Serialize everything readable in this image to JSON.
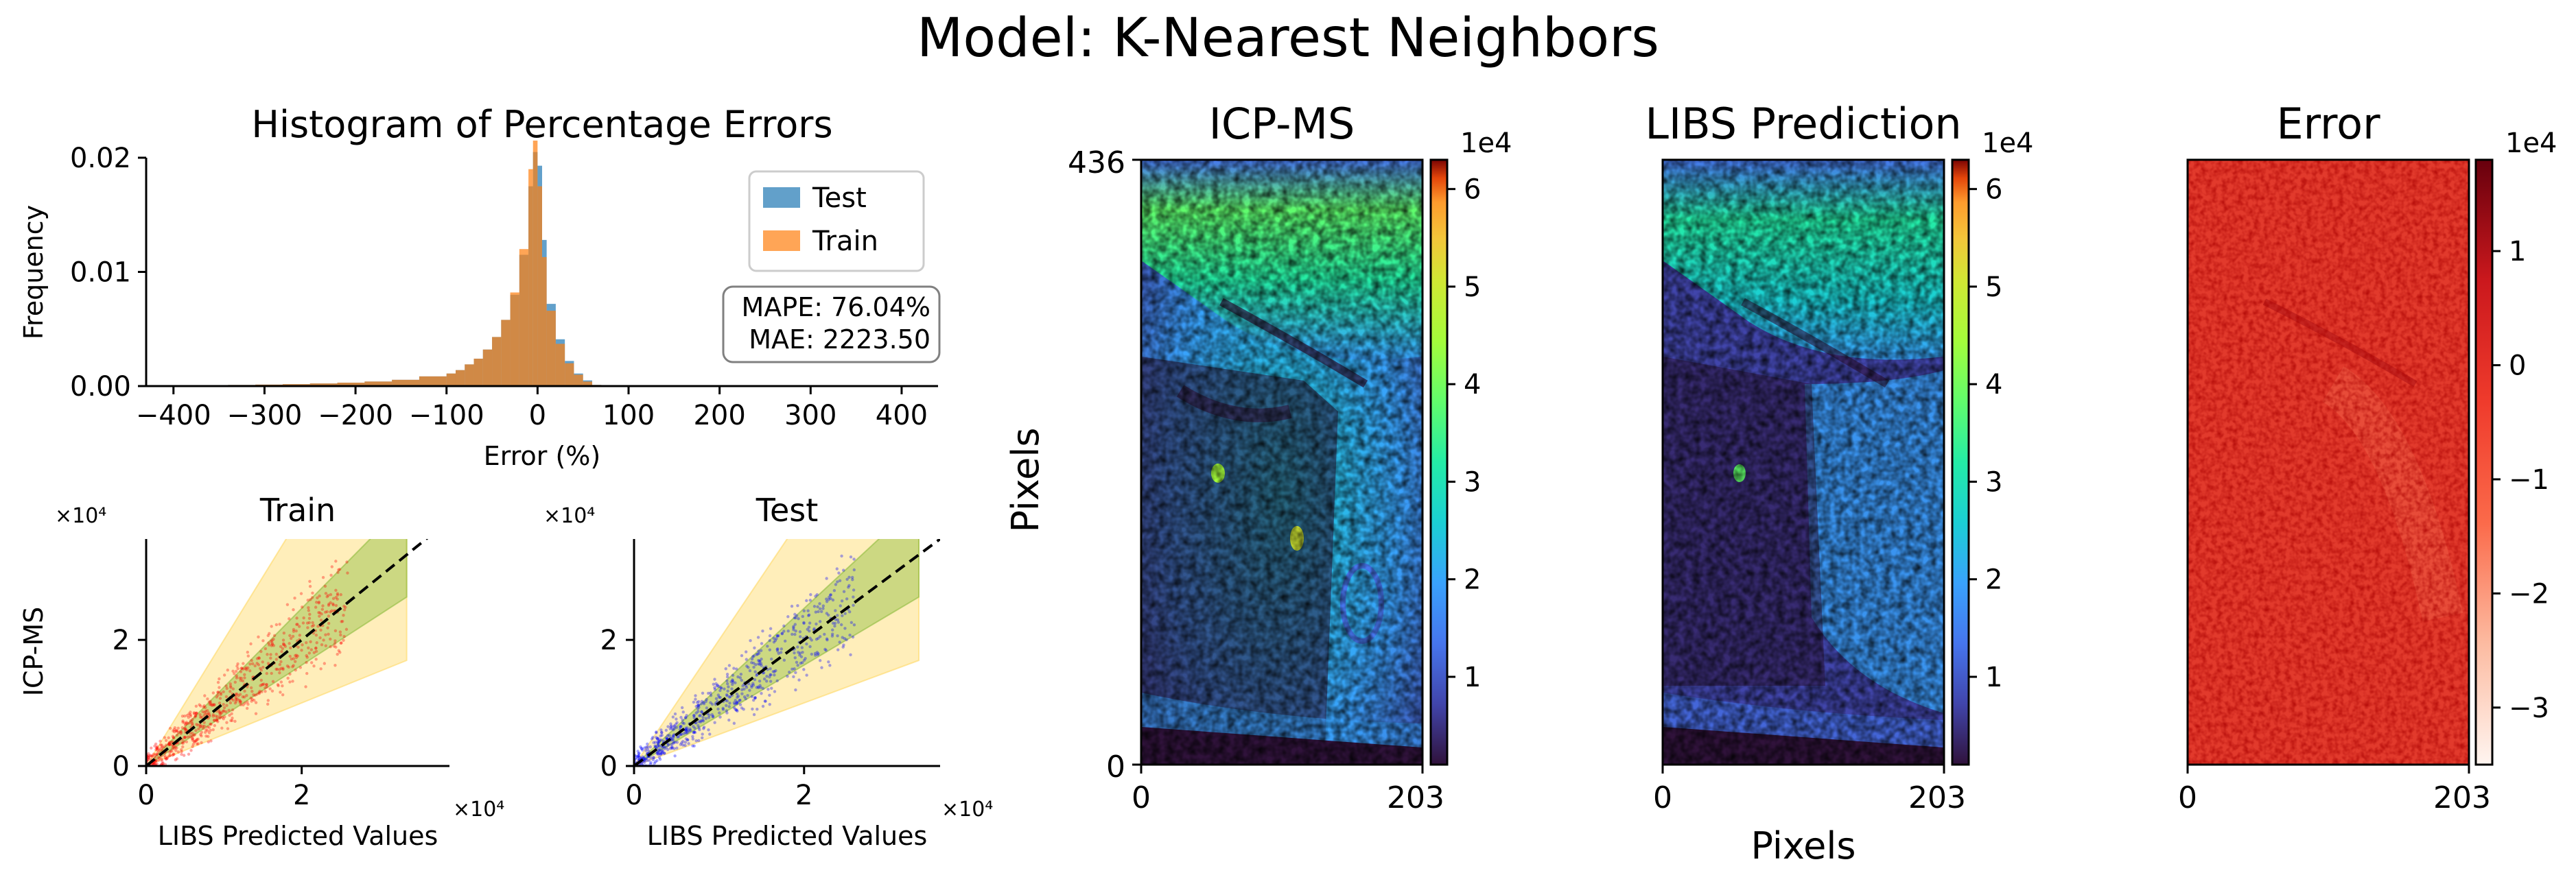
{
  "suptitle": "Model: K-Nearest Neighbors",
  "chart_data": [
    {
      "type": "histogram",
      "title": "Histogram of Percentage Errors",
      "xlabel": "Error (%)",
      "ylabel": "Frequency",
      "xlim": [
        -430,
        440
      ],
      "ylim": [
        0,
        0.02
      ],
      "xticks": [
        "−400",
        "−300",
        "−200",
        "−100",
        "0",
        "100",
        "200",
        "300",
        "400"
      ],
      "yticks": [
        "0.00",
        "0.01",
        "0.02"
      ],
      "legend_position": "upper right",
      "series": [
        {
          "name": "Test",
          "color": "#1f77b4",
          "bins": [
            -430,
            -400,
            -370,
            -340,
            -310,
            -280,
            -250,
            -220,
            -190,
            -160,
            -130,
            -100,
            -90,
            -80,
            -70,
            -60,
            -50,
            -40,
            -30,
            -20,
            -10,
            -5,
            0,
            5,
            10,
            20,
            30,
            40,
            50,
            60,
            70
          ],
          "values": [
            5e-05,
            5e-05,
            8e-05,
            0.0001,
            0.00013,
            0.00017,
            0.00023,
            0.0003,
            0.0004,
            0.00055,
            0.00085,
            0.0011,
            0.0014,
            0.0019,
            0.0024,
            0.0032,
            0.0043,
            0.0058,
            0.008,
            0.0115,
            0.0175,
            0.0205,
            0.0193,
            0.0128,
            0.0072,
            0.0041,
            0.0022,
            0.0011,
            0.0005,
            0.0001
          ]
        },
        {
          "name": "Train",
          "color": "#ff7f0e",
          "bins": [
            -430,
            -400,
            -370,
            -340,
            -310,
            -280,
            -250,
            -220,
            -190,
            -160,
            -130,
            -100,
            -90,
            -80,
            -70,
            -60,
            -50,
            -40,
            -30,
            -20,
            -10,
            -5,
            0,
            5,
            10,
            20,
            30,
            40,
            50,
            60,
            70
          ],
          "values": [
            5e-05,
            5e-05,
            8e-05,
            0.0001,
            0.00013,
            0.00017,
            0.00023,
            0.0003,
            0.0004,
            0.00055,
            0.00085,
            0.0011,
            0.0014,
            0.0019,
            0.0024,
            0.0032,
            0.0043,
            0.0058,
            0.0082,
            0.012,
            0.019,
            0.0215,
            0.0175,
            0.0113,
            0.0066,
            0.0037,
            0.002,
            0.001,
            0.0004,
            0.0001
          ]
        }
      ],
      "annotation": [
        "MAPE: 76.04%",
        "MAE: 2223.50"
      ]
    },
    {
      "type": "scatter",
      "title": "Train",
      "xlabel": "LIBS Predicted Values",
      "ylabel": "ICP-MS",
      "xlim": [
        0,
        3.9
      ],
      "ylim": [
        0,
        3.6
      ],
      "xticks": [
        "0",
        "2"
      ],
      "yticks": [
        "0",
        "2"
      ],
      "x_offset_label": "×10⁴",
      "y_offset_label": "×10⁴",
      "point_color": "#ff0000",
      "reference_line": "y = x",
      "bands": [
        {
          "color": "#ffd966",
          "lower_slope": 0.5,
          "upper_slope": 2.0,
          "x_max": 3.35
        },
        {
          "color": "#8fbc3f",
          "lower_slope": 0.8,
          "upper_slope": 1.25,
          "x_max": 3.35
        }
      ]
    },
    {
      "type": "scatter",
      "title": "Test",
      "xlabel": "LIBS Predicted Values",
      "ylabel": "",
      "xlim": [
        0,
        3.6
      ],
      "ylim": [
        0,
        3.6
      ],
      "xticks": [
        "0",
        "2"
      ],
      "yticks": [
        "0",
        "2"
      ],
      "x_offset_label": "×10⁴",
      "y_offset_label": "×10⁴",
      "point_color": "#0000ff",
      "reference_line": "y = x",
      "bands": [
        {
          "color": "#ffd966",
          "lower_slope": 0.5,
          "upper_slope": 2.0,
          "x_max": 3.35
        },
        {
          "color": "#8fbc3f",
          "lower_slope": 0.8,
          "upper_slope": 1.25,
          "x_max": 3.35
        }
      ]
    },
    {
      "type": "heatmap",
      "title": "ICP-MS",
      "xlabel": "",
      "ylabel": "Pixels",
      "xticks": [
        "0",
        "203"
      ],
      "yticks": [
        "436",
        "0"
      ],
      "colormap": "turbo",
      "colorbar_label": "1e4",
      "colorbar_ticks": [
        "1",
        "2",
        "3",
        "4",
        "5",
        "6"
      ],
      "colorbar_range": [
        0.1,
        6.3
      ]
    },
    {
      "type": "heatmap",
      "title": "LIBS Prediction",
      "xlabel": "Pixels",
      "ylabel": "",
      "xticks": [
        "0",
        "203"
      ],
      "yticks": [],
      "colormap": "turbo",
      "colorbar_label": "1e4",
      "colorbar_ticks": [
        "1",
        "2",
        "3",
        "4",
        "5",
        "6"
      ],
      "colorbar_range": [
        0.1,
        6.3
      ]
    },
    {
      "type": "heatmap",
      "title": "Error",
      "xlabel": "",
      "ylabel": "",
      "xticks": [
        "0",
        "203"
      ],
      "yticks": [],
      "colormap": "Reds",
      "colorbar_label": "1e4",
      "colorbar_ticks": [
        "1",
        "0",
        "−1",
        "−2",
        "−3"
      ],
      "colorbar_range": [
        -3.5,
        1.8
      ]
    }
  ]
}
